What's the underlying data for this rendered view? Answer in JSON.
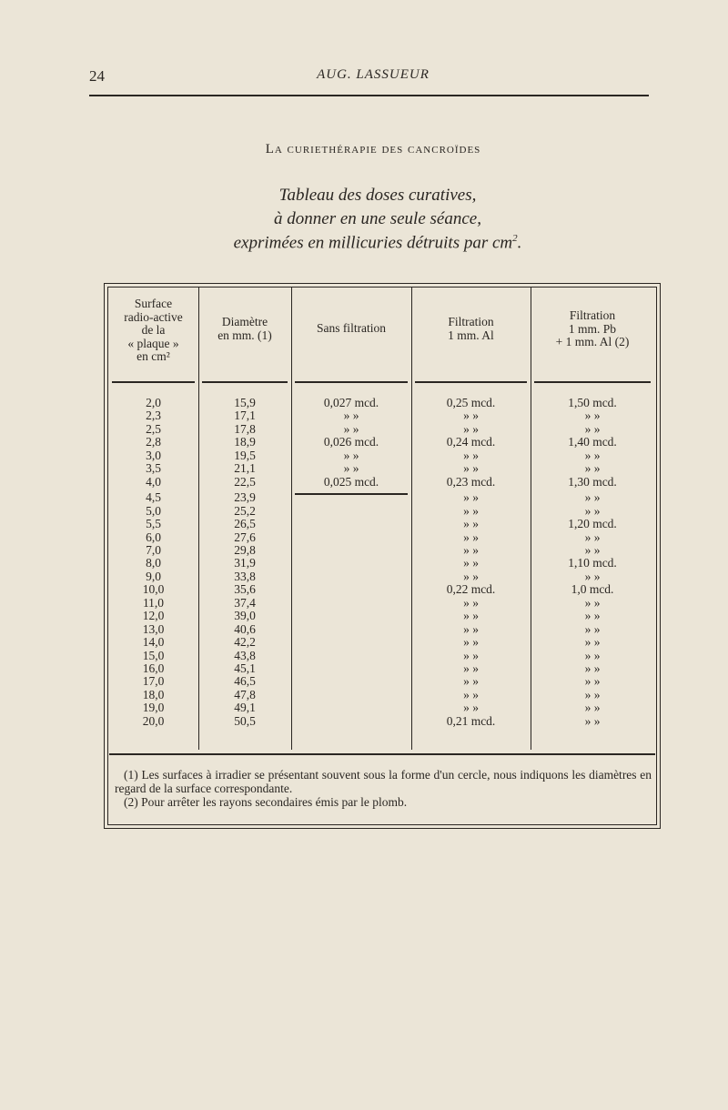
{
  "header": {
    "page_number": "24",
    "running_title": "AUG. LASSUEUR"
  },
  "section_title": "La curiethérapie des cancroïdes",
  "title_lines": [
    "Tableau des doses curatives,",
    "à donner en une seule séance,",
    "exprimées en millicuries détruits par cm"
  ],
  "title_sup": "2",
  "title_end": ".",
  "table": {
    "headers": [
      [
        "Surface",
        "radio-active",
        "de la",
        "« plaque »",
        "en cm²"
      ],
      [
        "Diamètre",
        "en mm. (1)"
      ],
      [
        "Sans filtration"
      ],
      [
        "Filtration",
        "1 mm. Al"
      ],
      [
        "Filtration",
        "1 mm. Pb",
        "+ 1 mm. Al (2)"
      ]
    ],
    "rows": [
      [
        "2,0",
        "15,9",
        "0,027 mcd.",
        "0,25 mcd.",
        "1,50 mcd."
      ],
      [
        "2,3",
        "17,1",
        "» »",
        "» »",
        "» »"
      ],
      [
        "2,5",
        "17,8",
        "» »",
        "» »",
        "» »"
      ],
      [
        "2,8",
        "18,9",
        "0,026 mcd.",
        "0,24 mcd.",
        "1,40 mcd."
      ],
      [
        "3,0",
        "19,5",
        "» »",
        "» »",
        "» »"
      ],
      [
        "3,5",
        "21,1",
        "» »",
        "» »",
        "» »"
      ],
      [
        "4,0",
        "22,5",
        "0,025 mcd.",
        "0,23 mcd.",
        "1,30 mcd."
      ],
      [
        "4,5",
        "23,9",
        "",
        "» »",
        "» »"
      ],
      [
        "5,0",
        "25,2",
        "",
        "» »",
        "» »"
      ],
      [
        "5,5",
        "26,5",
        "",
        "» »",
        "1,20 mcd."
      ],
      [
        "6,0",
        "27,6",
        "",
        "» »",
        "» »"
      ],
      [
        "7,0",
        "29,8",
        "",
        "» »",
        "» »"
      ],
      [
        "8,0",
        "31,9",
        "",
        "» »",
        "1,10 mcd."
      ],
      [
        "9,0",
        "33,8",
        "",
        "» »",
        "» »"
      ],
      [
        "10,0",
        "35,6",
        "",
        "0,22 mcd.",
        "1,0 mcd."
      ],
      [
        "11,0",
        "37,4",
        "",
        "» »",
        "» »"
      ],
      [
        "12,0",
        "39,0",
        "",
        "» »",
        "» »"
      ],
      [
        "13,0",
        "40,6",
        "",
        "» »",
        "» »"
      ],
      [
        "14,0",
        "42,2",
        "",
        "» »",
        "» »"
      ],
      [
        "15,0",
        "43,8",
        "",
        "» »",
        "» »"
      ],
      [
        "16,0",
        "45,1",
        "",
        "» »",
        "» »"
      ],
      [
        "17,0",
        "46,5",
        "",
        "» »",
        "» »"
      ],
      [
        "18,0",
        "47,8",
        "",
        "» »",
        "» »"
      ],
      [
        "19,0",
        "49,1",
        "",
        "» »",
        "» »"
      ],
      [
        "20,0",
        "50,5",
        "",
        "0,21 mcd.",
        "» »"
      ]
    ]
  },
  "footnotes": [
    "(1) Les surfaces à irradier se présentant souvent sous la forme d'un cercle, nous indiquons les diamètres en regard de la surface correspondante.",
    "(2) Pour arrêter les rayons secondaires émis par le plomb."
  ]
}
